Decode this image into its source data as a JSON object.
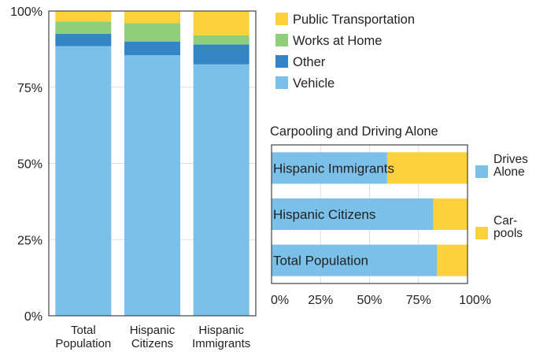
{
  "colors": {
    "vehicle": "#7bc0e8",
    "other": "#3385c6",
    "works_at_home": "#8fcf7c",
    "public_transportation": "#fdd13a",
    "drives_alone": "#7bc0e8",
    "carpools": "#fdd13a",
    "grid": "#dddddd",
    "axis": "#444444"
  },
  "chart_data": [
    {
      "type": "bar",
      "stacked": true,
      "title": "",
      "xlabel": "",
      "ylabel": "",
      "ylim": [
        0,
        100
      ],
      "y_ticks": [
        "0%",
        "25%",
        "50%",
        "75%",
        "100%"
      ],
      "categories": [
        [
          "Total",
          "Population"
        ],
        [
          "Hispanic",
          "Citizens"
        ],
        [
          "Hispanic",
          "Immigrants"
        ]
      ],
      "series": [
        {
          "name": "Vehicle",
          "color_key": "vehicle",
          "values": [
            88.5,
            85.5,
            82.5
          ]
        },
        {
          "name": "Other",
          "color_key": "other",
          "values": [
            4,
            4.5,
            6.5
          ]
        },
        {
          "name": "Works at Home",
          "color_key": "works_at_home",
          "values": [
            4,
            6,
            3
          ]
        },
        {
          "name": "Public Transportation",
          "color_key": "public_transportation",
          "values": [
            3.5,
            4,
            8
          ]
        }
      ],
      "legend": {
        "position": "right",
        "entries": [
          "Public Transportation",
          "Works at Home",
          "Other",
          "Vehicle"
        ]
      },
      "grid": true
    },
    {
      "type": "bar",
      "orientation": "horizontal",
      "stacked": true,
      "title": "Carpooling and Driving Alone",
      "xlim": [
        0,
        100
      ],
      "x_ticks": [
        "0%",
        "25%",
        "50%",
        "75%",
        "100%"
      ],
      "categories": [
        "Hispanic Immigrants",
        "Hispanic Citizens",
        "Total Population"
      ],
      "series": [
        {
          "name": [
            "Drives",
            "Alone"
          ],
          "color_key": "drives_alone",
          "values": [
            59,
            82.5,
            84.5
          ]
        },
        {
          "name": [
            "Car-",
            "pools"
          ],
          "color_key": "carpools",
          "values": [
            41,
            17.5,
            15.5
          ]
        }
      ],
      "legend": {
        "position": "right"
      },
      "grid": true
    }
  ]
}
